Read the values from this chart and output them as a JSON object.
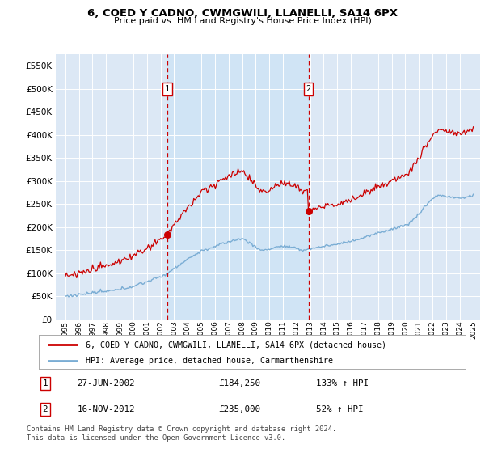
{
  "title": "6, COED Y CADNO, CWMGWILI, LLANELLI, SA14 6PX",
  "subtitle": "Price paid vs. HM Land Registry's House Price Index (HPI)",
  "plot_bg_color": "#dce8f5",
  "shaded_color": "#cddcee",
  "ylim": [
    0,
    575000
  ],
  "yticks": [
    0,
    50000,
    100000,
    150000,
    200000,
    250000,
    300000,
    350000,
    400000,
    450000,
    500000,
    550000
  ],
  "xstart_year": 1995,
  "xend_year": 2025,
  "sale1_year": 2002.5,
  "sale1_price": 184250,
  "sale2_year": 2012.88,
  "sale2_price": 235000,
  "legend_line1": "6, COED Y CADNO, CWMGWILI, LLANELLI, SA14 6PX (detached house)",
  "legend_line2": "HPI: Average price, detached house, Carmarthenshire",
  "annotation1_date": "27-JUN-2002",
  "annotation1_price": "£184,250",
  "annotation1_hpi": "133% ↑ HPI",
  "annotation2_date": "16-NOV-2012",
  "annotation2_price": "£235,000",
  "annotation2_hpi": "52% ↑ HPI",
  "footer": "Contains HM Land Registry data © Crown copyright and database right 2024.\nThis data is licensed under the Open Government Licence v3.0.",
  "red_color": "#cc0000",
  "blue_color": "#7aadd4",
  "dashed_color": "#cc0000"
}
